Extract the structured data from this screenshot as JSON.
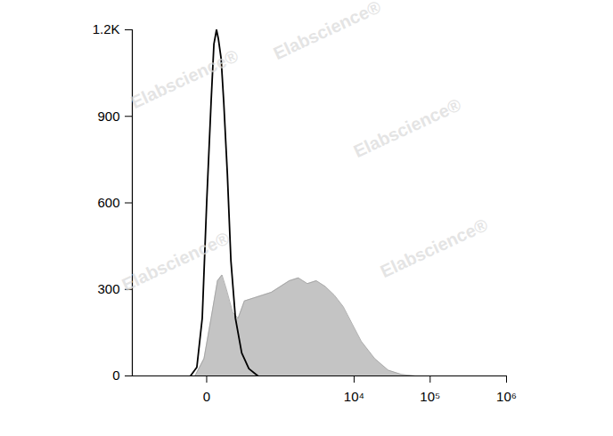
{
  "chart_data": {
    "type": "area",
    "log": "x",
    "xlim": [
      -1000,
      1000000
    ],
    "xticks": [
      0,
      {
        "value": 10000,
        "label": "10⁴"
      },
      {
        "value": 100000,
        "label": "10⁵"
      },
      {
        "value": 1000000,
        "label": "10⁶"
      }
    ],
    "ylim": [
      0,
      1200
    ],
    "yticks": [
      0,
      300,
      600,
      900,
      {
        "value": 1200,
        "label": "1.2K"
      }
    ],
    "annotations": [
      "Elabscience®"
    ],
    "series": [
      {
        "type": "area",
        "color": "#c4c4c4",
        "x": [
          -50,
          -10,
          17,
          46,
          70,
          97,
          142,
          188,
          252,
          368,
          519,
          718,
          978,
          1320,
          1767,
          2356,
          3120,
          4130,
          5460,
          7190,
          9460,
          12450,
          18740,
          28180,
          42400,
          63700
        ],
        "values": [
          0,
          60,
          200,
          330,
          350,
          300,
          220,
          200,
          260,
          270,
          280,
          290,
          310,
          330,
          340,
          320,
          330,
          310,
          280,
          240,
          180,
          120,
          60,
          20,
          5,
          0
        ]
      },
      {
        "type": "line",
        "color": "#000000",
        "x": [
          -75,
          -41,
          -17,
          0,
          17,
          29,
          41,
          50,
          65,
          80,
          103,
          128,
          164,
          223,
          306,
          438
        ],
        "values": [
          0,
          30,
          200,
          600,
          950,
          1150,
          1200,
          1170,
          1100,
          950,
          700,
          400,
          200,
          80,
          25,
          0
        ]
      }
    ]
  }
}
